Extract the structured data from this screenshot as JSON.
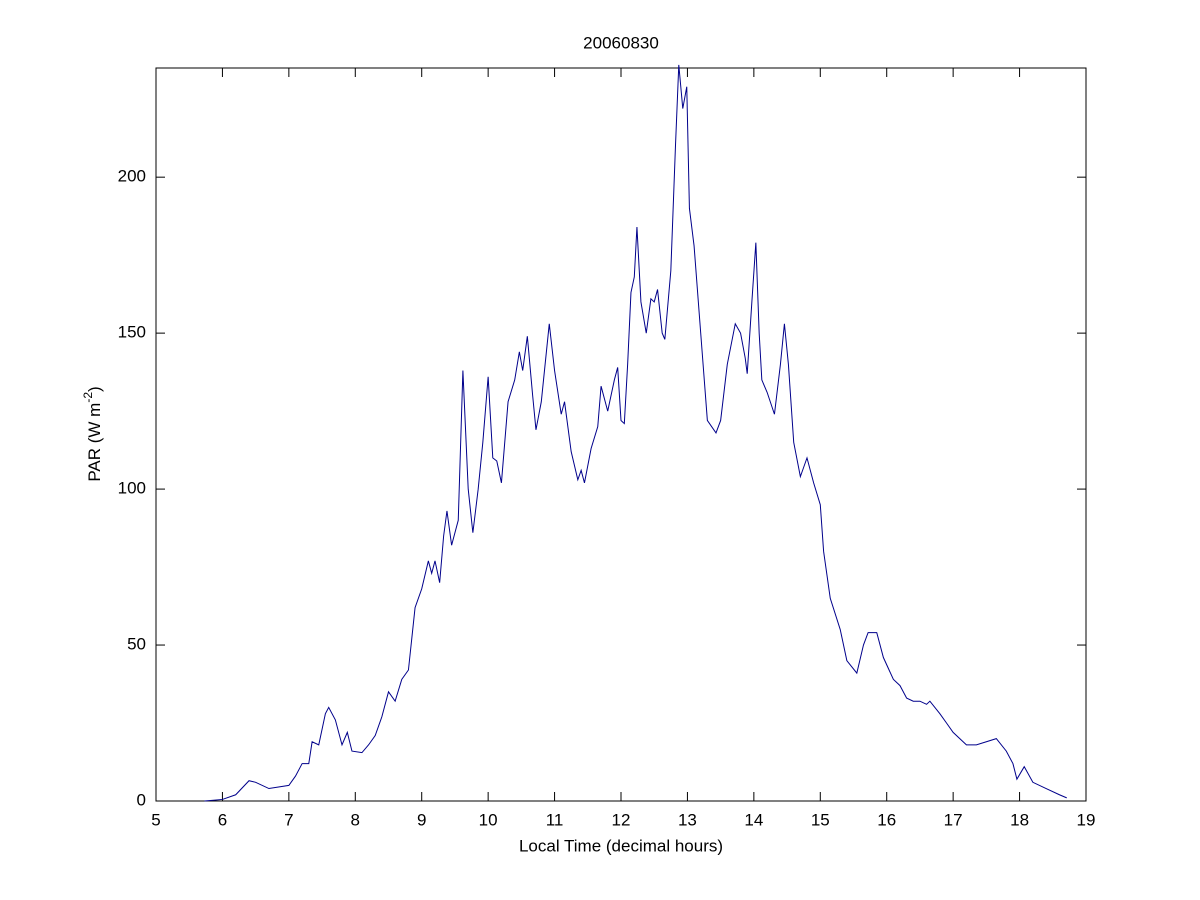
{
  "chart_data": {
    "type": "line",
    "title": "20060830",
    "xlabel": "Local Time (decimal hours)",
    "ylabel": {
      "text": "PAR (W m",
      "superscript": "-2",
      "suffix": ")"
    },
    "xlim": [
      5,
      19
    ],
    "xticks": [
      5,
      6,
      7,
      8,
      9,
      10,
      11,
      12,
      13,
      14,
      15,
      16,
      17,
      18,
      19
    ],
    "ylim": [
      0,
      235
    ],
    "yticks": [
      0,
      50,
      100,
      150,
      200
    ],
    "series": [
      {
        "color": "#00008b",
        "x": [
          5.73,
          6.0,
          6.2,
          6.4,
          6.5,
          6.7,
          7.0,
          7.1,
          7.2,
          7.3,
          7.35,
          7.45,
          7.55,
          7.6,
          7.7,
          7.8,
          7.88,
          7.95,
          8.1,
          8.2,
          8.3,
          8.4,
          8.5,
          8.6,
          8.7,
          8.8,
          8.9,
          9.0,
          9.1,
          9.15,
          9.2,
          9.27,
          9.33,
          9.38,
          9.45,
          9.55,
          9.62,
          9.7,
          9.77,
          9.85,
          9.92,
          10.0,
          10.07,
          10.13,
          10.2,
          10.3,
          10.4,
          10.47,
          10.52,
          10.59,
          10.67,
          10.72,
          10.8,
          10.92,
          11.0,
          11.1,
          11.15,
          11.25,
          11.35,
          11.4,
          11.45,
          11.55,
          11.65,
          11.7,
          11.8,
          11.9,
          11.95,
          12.0,
          12.05,
          12.1,
          12.15,
          12.2,
          12.24,
          12.3,
          12.38,
          12.45,
          12.5,
          12.55,
          12.62,
          12.66,
          12.75,
          12.82,
          12.87,
          12.93,
          12.99,
          13.03,
          13.1,
          13.2,
          13.3,
          13.43,
          13.5,
          13.6,
          13.72,
          13.8,
          13.87,
          13.9,
          13.97,
          14.03,
          14.08,
          14.12,
          14.2,
          14.31,
          14.4,
          14.46,
          14.52,
          14.6,
          14.7,
          14.8,
          14.9,
          15.0,
          15.05,
          15.15,
          15.3,
          15.4,
          15.55,
          15.65,
          15.72,
          15.85,
          15.95,
          16.1,
          16.2,
          16.3,
          16.4,
          16.5,
          16.6,
          16.65,
          16.8,
          16.9,
          17.0,
          17.2,
          17.35,
          17.5,
          17.65,
          17.8,
          17.9,
          17.96,
          18.07,
          18.2,
          18.4,
          18.6,
          18.71
        ],
        "values": [
          0,
          0.5,
          2,
          6.5,
          6,
          4,
          5,
          8,
          12,
          12,
          19,
          18,
          28,
          30,
          26,
          18,
          22,
          16,
          15.5,
          18,
          21,
          27,
          35,
          32,
          39,
          42,
          62,
          68,
          77,
          73,
          77,
          70,
          85,
          93,
          82,
          90,
          138,
          100,
          86,
          100,
          115,
          136,
          110,
          109,
          102,
          128,
          135,
          144,
          138,
          149,
          130,
          119,
          128,
          153,
          138,
          124,
          128,
          112,
          103,
          106,
          102,
          113,
          120,
          133,
          125,
          135,
          139,
          122,
          121,
          140,
          163,
          168,
          184,
          160,
          150,
          161,
          160,
          164,
          150,
          148,
          170,
          210,
          236,
          222,
          229,
          190,
          178,
          150,
          122,
          118,
          122,
          140,
          153,
          150,
          142,
          137,
          160,
          179,
          150,
          135,
          131,
          124,
          140,
          153,
          140,
          115,
          104,
          110,
          102,
          95,
          80,
          65,
          55,
          45,
          41,
          50,
          54,
          54,
          46,
          39,
          37,
          33,
          32,
          32,
          31,
          32,
          28,
          25,
          22,
          18,
          18,
          19,
          20,
          16,
          12,
          7,
          11,
          6,
          4,
          2,
          1
        ]
      }
    ]
  }
}
